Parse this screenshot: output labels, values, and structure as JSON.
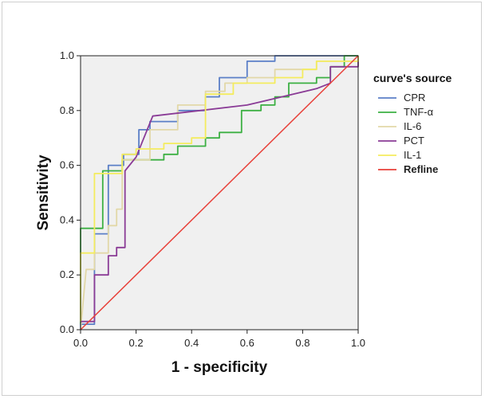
{
  "chart_data": {
    "type": "line",
    "title": "",
    "xlabel": "1 - specificity",
    "ylabel": "Sensitivity",
    "xlim": [
      0,
      1
    ],
    "ylim": [
      0,
      1
    ],
    "xticks": [
      "0.0",
      "0.2",
      "0.4",
      "0.6",
      "0.8",
      "1.0"
    ],
    "yticks": [
      "0.0",
      "0.2",
      "0.4",
      "0.6",
      "0.8",
      "1.0"
    ],
    "grid": false,
    "background": "#f0f0f0",
    "legend": {
      "title": "curve's source",
      "placement": "right"
    },
    "series": [
      {
        "name": "CPR",
        "color": "#5b7fc7",
        "points": [
          [
            0,
            0
          ],
          [
            0,
            0.02
          ],
          [
            0.05,
            0.02
          ],
          [
            0.05,
            0.35
          ],
          [
            0.1,
            0.35
          ],
          [
            0.1,
            0.6
          ],
          [
            0.155,
            0.6
          ],
          [
            0.155,
            0.64
          ],
          [
            0.21,
            0.64
          ],
          [
            0.21,
            0.73
          ],
          [
            0.25,
            0.73
          ],
          [
            0.25,
            0.76
          ],
          [
            0.35,
            0.76
          ],
          [
            0.35,
            0.8
          ],
          [
            0.45,
            0.8
          ],
          [
            0.45,
            0.85
          ],
          [
            0.5,
            0.85
          ],
          [
            0.5,
            0.92
          ],
          [
            0.6,
            0.92
          ],
          [
            0.6,
            0.98
          ],
          [
            0.7,
            0.98
          ],
          [
            0.7,
            1.0
          ],
          [
            1.0,
            1.0
          ]
        ]
      },
      {
        "name": "TNF-α",
        "color": "#3cb043",
        "points": [
          [
            0,
            0.02
          ],
          [
            0,
            0.37
          ],
          [
            0.08,
            0.37
          ],
          [
            0.08,
            0.58
          ],
          [
            0.15,
            0.58
          ],
          [
            0.15,
            0.62
          ],
          [
            0.3,
            0.62
          ],
          [
            0.3,
            0.64
          ],
          [
            0.35,
            0.64
          ],
          [
            0.35,
            0.67
          ],
          [
            0.45,
            0.67
          ],
          [
            0.45,
            0.7
          ],
          [
            0.5,
            0.7
          ],
          [
            0.5,
            0.72
          ],
          [
            0.58,
            0.72
          ],
          [
            0.58,
            0.8
          ],
          [
            0.65,
            0.8
          ],
          [
            0.65,
            0.82
          ],
          [
            0.7,
            0.82
          ],
          [
            0.7,
            0.85
          ],
          [
            0.75,
            0.85
          ],
          [
            0.75,
            0.9
          ],
          [
            0.85,
            0.9
          ],
          [
            0.85,
            0.92
          ],
          [
            0.9,
            0.92
          ],
          [
            0.9,
            0.96
          ],
          [
            0.95,
            0.96
          ],
          [
            0.95,
            1.0
          ],
          [
            1.0,
            1.0
          ]
        ]
      },
      {
        "name": "IL-6",
        "color": "#e2d8a8",
        "points": [
          [
            0,
            0
          ],
          [
            0.02,
            0.22
          ],
          [
            0.05,
            0.22
          ],
          [
            0.05,
            0.28
          ],
          [
            0.1,
            0.28
          ],
          [
            0.1,
            0.38
          ],
          [
            0.13,
            0.38
          ],
          [
            0.13,
            0.44
          ],
          [
            0.15,
            0.44
          ],
          [
            0.15,
            0.62
          ],
          [
            0.25,
            0.62
          ],
          [
            0.25,
            0.73
          ],
          [
            0.35,
            0.73
          ],
          [
            0.35,
            0.82
          ],
          [
            0.45,
            0.82
          ],
          [
            0.45,
            0.87
          ],
          [
            0.52,
            0.87
          ],
          [
            0.52,
            0.9
          ],
          [
            0.6,
            0.9
          ],
          [
            0.6,
            0.92
          ],
          [
            0.7,
            0.92
          ],
          [
            0.7,
            0.95
          ],
          [
            0.85,
            0.95
          ],
          [
            0.85,
            0.98
          ],
          [
            1.0,
            0.98
          ],
          [
            1.0,
            1.0
          ]
        ]
      },
      {
        "name": "PCT",
        "color": "#8a3b96",
        "points": [
          [
            0,
            0.03
          ],
          [
            0.05,
            0.03
          ],
          [
            0.05,
            0.2
          ],
          [
            0.1,
            0.2
          ],
          [
            0.1,
            0.27
          ],
          [
            0.13,
            0.27
          ],
          [
            0.13,
            0.3
          ],
          [
            0.16,
            0.3
          ],
          [
            0.16,
            0.58
          ],
          [
            0.2,
            0.63
          ],
          [
            0.26,
            0.78
          ],
          [
            0.6,
            0.82
          ],
          [
            0.85,
            0.88
          ],
          [
            0.9,
            0.9
          ],
          [
            0.9,
            0.96
          ],
          [
            1.0,
            0.96
          ],
          [
            1.0,
            1.0
          ]
        ]
      },
      {
        "name": "IL-1",
        "color": "#f4ec5e",
        "points": [
          [
            0,
            0.03
          ],
          [
            0,
            0.28
          ],
          [
            0.05,
            0.28
          ],
          [
            0.05,
            0.57
          ],
          [
            0.15,
            0.57
          ],
          [
            0.15,
            0.64
          ],
          [
            0.2,
            0.64
          ],
          [
            0.2,
            0.66
          ],
          [
            0.3,
            0.66
          ],
          [
            0.3,
            0.68
          ],
          [
            0.4,
            0.68
          ],
          [
            0.4,
            0.7
          ],
          [
            0.45,
            0.7
          ],
          [
            0.45,
            0.86
          ],
          [
            0.55,
            0.86
          ],
          [
            0.55,
            0.9
          ],
          [
            0.7,
            0.9
          ],
          [
            0.7,
            0.92
          ],
          [
            0.8,
            0.92
          ],
          [
            0.8,
            0.95
          ],
          [
            0.85,
            0.95
          ],
          [
            0.85,
            0.98
          ],
          [
            1.0,
            0.98
          ],
          [
            1.0,
            1.0
          ]
        ]
      },
      {
        "name": "Refline",
        "color": "#e8413a",
        "bold": true,
        "points": [
          [
            0,
            0
          ],
          [
            1,
            1
          ]
        ]
      }
    ]
  }
}
